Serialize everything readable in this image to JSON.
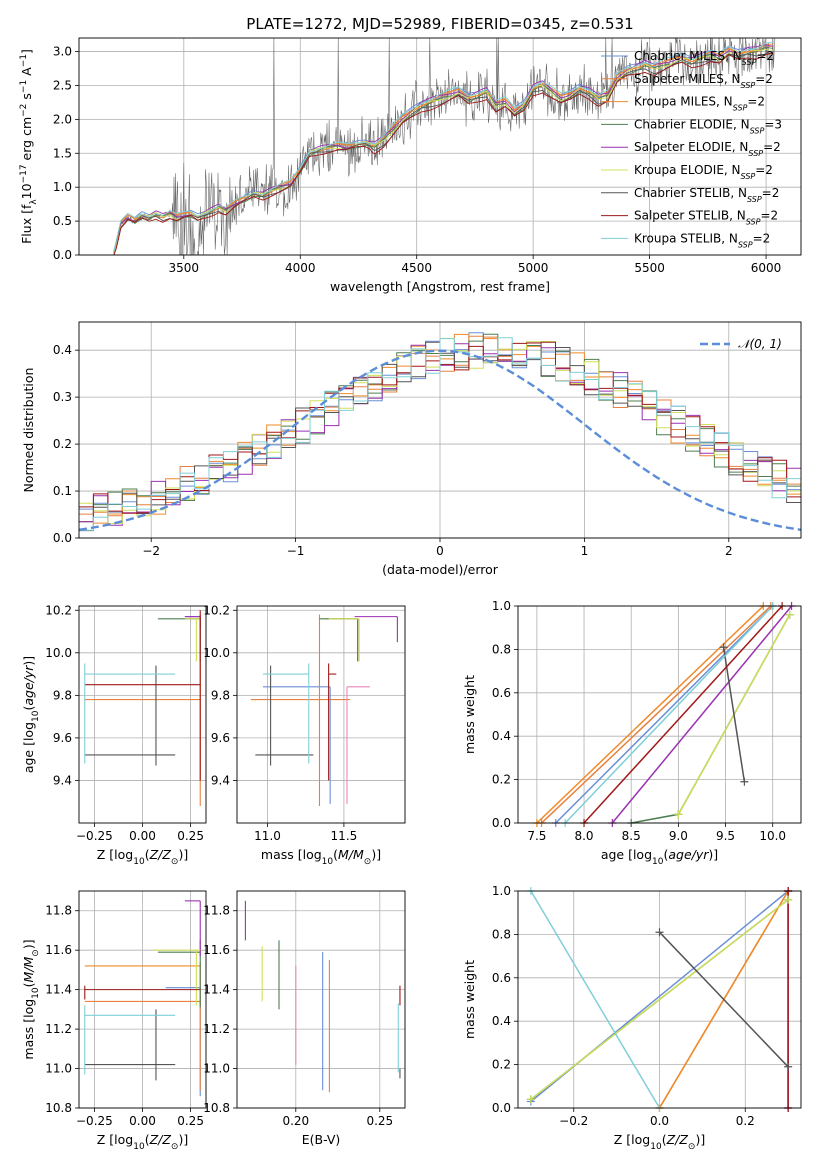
{
  "figure": {
    "title": "PLATE=1272, MJD=52989, FIBERID=0345, z=0.531"
  },
  "colors": {
    "data": "#606060",
    "Chabrier MILES": "#6a8fd6",
    "Salpeter MILES": "#e8803e",
    "Kroupa MILES": "#f08a2a",
    "Chabrier ELODIE": "#4e7f52",
    "Salpeter ELODIE": "#9b30b0",
    "Kroupa ELODIE": "#cfe05a",
    "Chabrier STELIB": "#555555",
    "Salpeter STELIB": "#a01818",
    "Kroupa STELIB": "#80cfd8",
    "normal": "#5b8dd9"
  },
  "chart_data": [
    {
      "type": "line",
      "title": "PLATE=1272, MJD=52989, FIBERID=0345, z=0.531",
      "xlabel": "wavelength [Angstrom, rest frame]",
      "ylabel": "Flux [f_λ 10^-17 erg cm^-2 s^-1 A^-1]",
      "xlim": [
        3050,
        6150
      ],
      "ylim": [
        0,
        3.2
      ],
      "xticks": [
        3500,
        4000,
        4500,
        5000,
        5500,
        6000
      ],
      "yticks": [
        0.0,
        0.5,
        1.0,
        1.5,
        2.0,
        2.5,
        3.0
      ],
      "grid": true,
      "legend": "upper right",
      "model_knots_x": [
        3200,
        3230,
        3260,
        3290,
        3320,
        3350,
        3380,
        3410,
        3440,
        3470,
        3500,
        3530,
        3560,
        3590,
        3620,
        3650,
        3680,
        3720,
        3760,
        3800,
        3840,
        3880,
        3920,
        3960,
        4000,
        4040,
        4080,
        4120,
        4160,
        4200,
        4240,
        4280,
        4320,
        4360,
        4400,
        4440,
        4480,
        4520,
        4560,
        4600,
        4640,
        4680,
        4720,
        4760,
        4800,
        4840,
        4880,
        4920,
        4960,
        5000,
        5040,
        5080,
        5120,
        5160,
        5200,
        5240,
        5280,
        5320,
        5360,
        5400,
        5440,
        5480,
        5520,
        5560,
        5600,
        5640,
        5680,
        5720,
        5760,
        5800,
        5840,
        5880,
        5920,
        5960,
        6000
      ],
      "model_knots_y": [
        0.02,
        0.45,
        0.55,
        0.5,
        0.58,
        0.55,
        0.6,
        0.56,
        0.6,
        0.55,
        0.58,
        0.6,
        0.55,
        0.6,
        0.65,
        0.7,
        0.65,
        0.75,
        0.82,
        0.9,
        0.88,
        0.95,
        1.0,
        1.05,
        1.25,
        1.5,
        1.55,
        1.58,
        1.6,
        1.58,
        1.62,
        1.65,
        1.6,
        1.7,
        1.85,
        2.0,
        2.1,
        2.2,
        2.25,
        2.3,
        2.35,
        2.4,
        2.3,
        2.35,
        2.4,
        2.2,
        2.25,
        2.1,
        2.2,
        2.45,
        2.5,
        2.4,
        2.3,
        2.35,
        2.45,
        2.4,
        2.3,
        2.35,
        2.6,
        2.7,
        2.75,
        2.8,
        2.75,
        2.8,
        2.85,
        2.9,
        2.85,
        2.9,
        2.95,
        2.9,
        3.0,
        2.95,
        3.0,
        3.0,
        3.05
      ],
      "series": [
        {
          "name": "Chabrier MILES",
          "nssp": "2",
          "offset": 0.05
        },
        {
          "name": "Salpeter MILES",
          "nssp": "2",
          "offset": 0.02
        },
        {
          "name": "Kroupa MILES",
          "nssp": "2",
          "offset": 0.03
        },
        {
          "name": "Chabrier ELODIE",
          "nssp": "3",
          "offset": -0.02
        },
        {
          "name": "Salpeter ELODIE",
          "nssp": "2",
          "offset": 0.04
        },
        {
          "name": "Kroupa ELODIE",
          "nssp": "2",
          "offset": 0.0
        },
        {
          "name": "Chabrier STELIB",
          "nssp": "2",
          "offset": -0.05
        },
        {
          "name": "Salpeter STELIB",
          "nssp": "2",
          "offset": -0.08
        },
        {
          "name": "Kroupa STELIB",
          "nssp": "2",
          "offset": 0.06
        }
      ]
    },
    {
      "type": "bar",
      "xlabel": "(data-model)/error",
      "ylabel": "Normed distribution",
      "xlim": [
        -2.5,
        2.5
      ],
      "ylim": [
        0,
        0.46
      ],
      "xticks": [
        -2,
        -1,
        0,
        1,
        2
      ],
      "yticks": [
        0.0,
        0.1,
        0.2,
        0.3,
        0.4
      ],
      "grid": true,
      "legend": "upper right",
      "reference_curve": {
        "name": "𝒩(0, 1)",
        "mean": 0,
        "sigma": 1
      },
      "bin_edges_range": [
        -2.5,
        2.5
      ],
      "bin_count": 50,
      "shape": {
        "center": 0.35,
        "sigma": 1.25,
        "peak": 0.38
      }
    },
    {
      "type": "scatter",
      "xlabel": "Z [log10(Z/Z⊙)]",
      "ylabel": "age [log10(age/yr)]",
      "xlim": [
        -0.33,
        0.33
      ],
      "ylim": [
        9.2,
        10.22
      ],
      "xticks": [
        -0.25,
        0.0,
        0.25
      ],
      "yticks": [
        9.4,
        9.6,
        9.8,
        10.0,
        10.2
      ],
      "grid": true,
      "points": [
        {
          "series": "Chabrier MILES",
          "x": 0.3,
          "y": 10.17,
          "xerr": [
            0.08,
            0.0
          ],
          "yerr": [
            0.05,
            0.0
          ]
        },
        {
          "series": "Salpeter MILES",
          "x": 0.3,
          "y": 9.78,
          "xerr": [
            0.6,
            0.0
          ],
          "yerr": [
            0.5,
            0.4
          ]
        },
        {
          "series": "Kroupa MILES",
          "x": 0.3,
          "y": 10.16,
          "xerr": [
            0.08,
            0.0
          ],
          "yerr": [
            0.05,
            0.0
          ]
        },
        {
          "series": "Chabrier ELODIE",
          "x": 0.3,
          "y": 10.16,
          "xerr": [
            0.22,
            0.0
          ],
          "yerr": [
            0.2,
            0.0
          ]
        },
        {
          "series": "Salpeter ELODIE",
          "x": 0.3,
          "y": 10.17,
          "xerr": [
            0.08,
            0.0
          ],
          "yerr": [
            0.05,
            0.0
          ]
        },
        {
          "series": "Kroupa ELODIE",
          "x": 0.28,
          "y": 10.16,
          "xerr": [
            0.06,
            0.02
          ],
          "yerr": [
            0.2,
            0.0
          ]
        },
        {
          "series": "Chabrier STELIB",
          "x": 0.07,
          "y": 9.52,
          "xerr": [
            0.37,
            0.1
          ],
          "yerr": [
            0.05,
            0.42
          ]
        },
        {
          "series": "Salpeter STELIB",
          "x": 0.3,
          "y": 9.85,
          "xerr": [
            0.6,
            0.0
          ],
          "yerr": [
            0.45,
            0.35
          ]
        },
        {
          "series": "Kroupa STELIB",
          "x": -0.3,
          "y": 9.9,
          "xerr": [
            0.0,
            0.47
          ],
          "yerr": [
            0.42,
            0.05
          ]
        }
      ]
    },
    {
      "type": "scatter",
      "xlabel": "mass [log10(M/M⊙)]",
      "ylabel": "",
      "xlim": [
        10.8,
        11.9
      ],
      "ylim": [
        9.2,
        10.22
      ],
      "xticks": [
        11.0,
        11.5
      ],
      "yticks": [
        9.4,
        9.6,
        9.8,
        10.0,
        10.2
      ],
      "grid": true,
      "points": [
        {
          "series": "Chabrier MILES",
          "x": 11.41,
          "y": 9.84,
          "xerr": [
            0.44,
            0.0
          ],
          "yerr": [
            0.55,
            0.0
          ]
        },
        {
          "series": "Salpeter MILES",
          "x": 11.34,
          "y": 9.78,
          "xerr": [
            0.45,
            0.2
          ],
          "yerr": [
            0.5,
            0.4
          ]
        },
        {
          "series": "Kroupa MILES",
          "x": 11.59,
          "y": 10.16,
          "xerr": [
            0.2,
            0.0
          ],
          "yerr": [
            0.2,
            0.0
          ]
        },
        {
          "series": "Chabrier ELODIE",
          "x": 11.59,
          "y": 10.16,
          "xerr": [
            0.25,
            0.0
          ],
          "yerr": [
            0.2,
            0.0
          ]
        },
        {
          "series": "Salpeter ELODIE",
          "x": 11.85,
          "y": 10.17,
          "xerr": [
            0.28,
            0.0
          ],
          "yerr": [
            0.12,
            0.0
          ]
        },
        {
          "series": "Kroupa ELODIE",
          "x": 11.6,
          "y": 10.16,
          "xerr": [
            0.2,
            0.0
          ],
          "yerr": [
            0.2,
            0.0
          ]
        },
        {
          "series": "Chabrier STELIB",
          "x": 11.02,
          "y": 9.52,
          "xerr": [
            0.1,
            0.28
          ],
          "yerr": [
            0.05,
            0.42
          ]
        },
        {
          "series": "Salpeter STELIB",
          "x": 11.4,
          "y": 9.9,
          "xerr": [
            0.0,
            0.05
          ],
          "yerr": [
            0.5,
            0.05
          ]
        },
        {
          "series": "Kroupa STELIB",
          "x": 11.27,
          "y": 9.9,
          "xerr": [
            0.3,
            0.0
          ],
          "yerr": [
            0.42,
            0.05
          ]
        },
        {
          "series": "Salpeter MILES pink",
          "x": 11.52,
          "y": 9.84,
          "xerr": [
            0.0,
            0.15
          ],
          "yerr": [
            0.55,
            0.0
          ]
        }
      ]
    },
    {
      "type": "line",
      "xlabel": "age [log10(age/yr)]",
      "ylabel": "mass weight",
      "xlim": [
        7.3,
        10.3
      ],
      "ylim": [
        0,
        1
      ],
      "xticks": [
        7.5,
        8.0,
        8.5,
        9.0,
        9.5,
        10.0
      ],
      "yticks": [
        0.0,
        0.2,
        0.4,
        0.6,
        0.8,
        1.0
      ],
      "grid": true,
      "series": [
        {
          "name": "Chabrier MILES",
          "x": [
            7.7,
            10.0
          ],
          "y": [
            0.0,
            1.0
          ]
        },
        {
          "name": "Salpeter MILES",
          "x": [
            7.55,
            9.98
          ],
          "y": [
            0.0,
            1.0
          ]
        },
        {
          "name": "Kroupa MILES",
          "x": [
            7.5,
            9.9
          ],
          "y": [
            0.0,
            1.0
          ]
        },
        {
          "name": "Chabrier ELODIE",
          "x": [
            8.5,
            9.0,
            10.18
          ],
          "y": [
            0.0,
            0.04,
            0.96
          ]
        },
        {
          "name": "Salpeter ELODIE",
          "x": [
            8.3,
            10.2
          ],
          "y": [
            0.0,
            1.0
          ]
        },
        {
          "name": "Kroupa ELODIE",
          "x": [
            9.0,
            10.18
          ],
          "y": [
            0.04,
            0.96
          ]
        },
        {
          "name": "Chabrier STELIB",
          "x": [
            9.48,
            9.7
          ],
          "y": [
            0.81,
            0.19
          ]
        },
        {
          "name": "Salpeter STELIB",
          "x": [
            8.0,
            10.1
          ],
          "y": [
            0.0,
            1.0
          ]
        },
        {
          "name": "Kroupa STELIB",
          "x": [
            7.8,
            10.0
          ],
          "y": [
            0.0,
            1.0
          ]
        }
      ]
    },
    {
      "type": "scatter",
      "xlabel": "Z [log10(Z/Z⊙)]",
      "ylabel": "mass [log10(M/M⊙)]",
      "xlim": [
        -0.33,
        0.33
      ],
      "ylim": [
        10.8,
        11.9
      ],
      "xticks": [
        -0.25,
        0.0,
        0.25
      ],
      "yticks": [
        10.8,
        11.0,
        11.2,
        11.4,
        11.6,
        11.8
      ],
      "grid": true,
      "points": [
        {
          "series": "Chabrier MILES",
          "x": 0.3,
          "y": 11.41,
          "xerr": [
            0.18,
            0.0
          ],
          "yerr": [
            0.55,
            0.0
          ]
        },
        {
          "series": "Salpeter MILES",
          "x": 0.3,
          "y": 11.34,
          "xerr": [
            0.6,
            0.0
          ],
          "yerr": [
            0.45,
            0.2
          ]
        },
        {
          "series": "Kroupa MILES",
          "x": 0.3,
          "y": 11.52,
          "xerr": [
            0.6,
            0.0
          ],
          "yerr": [
            0.0,
            0.0
          ]
        },
        {
          "series": "Chabrier ELODIE",
          "x": 0.3,
          "y": 11.59,
          "xerr": [
            0.22,
            0.0
          ],
          "yerr": [
            0.28,
            0.06
          ]
        },
        {
          "series": "Salpeter ELODIE",
          "x": 0.3,
          "y": 11.85,
          "xerr": [
            0.08,
            0.0
          ],
          "yerr": [
            0.28,
            0.0
          ]
        },
        {
          "series": "Kroupa ELODIE",
          "x": 0.28,
          "y": 11.6,
          "xerr": [
            0.22,
            0.02
          ],
          "yerr": [
            0.28,
            0.0
          ]
        },
        {
          "series": "Chabrier STELIB",
          "x": 0.07,
          "y": 11.02,
          "xerr": [
            0.37,
            0.1
          ],
          "yerr": [
            0.08,
            0.28
          ]
        },
        {
          "series": "Salpeter STELIB",
          "x": -0.3,
          "y": 11.4,
          "xerr": [
            0.0,
            0.6
          ],
          "yerr": [
            0.05,
            0.02
          ]
        },
        {
          "series": "Kroupa STELIB",
          "x": -0.3,
          "y": 11.27,
          "xerr": [
            0.0,
            0.47
          ],
          "yerr": [
            0.3,
            0.05
          ]
        }
      ]
    },
    {
      "type": "scatter",
      "xlabel": "E(B-V)",
      "ylabel": "",
      "xlim": [
        0.165,
        0.265
      ],
      "ylim": [
        10.8,
        11.9
      ],
      "xticks": [
        0.2,
        0.25
      ],
      "yticks": [
        10.8,
        11.0,
        11.2,
        11.4,
        11.6,
        11.8
      ],
      "grid": true,
      "points": [
        {
          "series": "Salpeter ELODIE",
          "x": 0.17,
          "y": 11.85,
          "yerr": [
            0.2,
            0.0
          ]
        },
        {
          "series": "Kroupa ELODIE",
          "x": 0.18,
          "y": 11.62,
          "yerr": [
            0.28,
            0.0
          ]
        },
        {
          "series": "Chabrier ELODIE",
          "x": 0.19,
          "y": 11.65,
          "yerr": [
            0.35,
            0.0
          ]
        },
        {
          "series": "Salpeter MILES pink",
          "x": 0.2,
          "y": 11.52,
          "yerr": [
            0.5,
            0.0
          ]
        },
        {
          "series": "Chabrier MILES",
          "x": 0.216,
          "y": 11.59,
          "yerr": [
            0.7,
            0.0
          ]
        },
        {
          "series": "Salpeter MILES",
          "x": 0.22,
          "y": 11.55,
          "yerr": [
            0.67,
            0.0
          ]
        },
        {
          "series": "Salpeter STELIB",
          "x": 0.262,
          "y": 11.42,
          "yerr": [
            0.1,
            0.0
          ]
        },
        {
          "series": "Kroupa STELIB",
          "x": 0.261,
          "y": 11.33,
          "yerr": [
            0.35,
            0.0
          ]
        },
        {
          "series": "Chabrier STELIB",
          "x": 0.262,
          "y": 11.0,
          "yerr": [
            0.05,
            0.0
          ]
        }
      ]
    },
    {
      "type": "line",
      "xlabel": "Z [log10(Z/Z⊙)]",
      "ylabel": "mass weight",
      "xlim": [
        -0.33,
        0.33
      ],
      "ylim": [
        0,
        1
      ],
      "xticks": [
        -0.2,
        0.0,
        0.2
      ],
      "yticks": [
        0.0,
        0.2,
        0.4,
        0.6,
        0.8,
        1.0
      ],
      "grid": true,
      "series": [
        {
          "name": "Chabrier MILES",
          "x": [
            -0.3,
            0.3
          ],
          "y": [
            0.03,
            1.0
          ]
        },
        {
          "name": "Salpeter MILES",
          "x": [
            0.0,
            0.3
          ],
          "y": [
            0.0,
            1.0
          ]
        },
        {
          "name": "Kroupa MILES",
          "x": [
            0.0,
            0.3
          ],
          "y": [
            0.0,
            1.0
          ]
        },
        {
          "name": "Chabrier ELODIE",
          "x": [
            -0.3,
            0.3
          ],
          "y": [
            0.04,
            0.96
          ]
        },
        {
          "name": "Salpeter ELODIE",
          "x": [
            0.3,
            0.3
          ],
          "y": [
            0.0,
            1.0
          ]
        },
        {
          "name": "Kroupa ELODIE",
          "x": [
            -0.3,
            0.3
          ],
          "y": [
            0.04,
            0.96
          ]
        },
        {
          "name": "Chabrier STELIB",
          "x": [
            0.0,
            0.3
          ],
          "y": [
            0.81,
            0.19
          ]
        },
        {
          "name": "Salpeter STELIB",
          "x": [
            0.3,
            0.3
          ],
          "y": [
            0.0,
            1.0
          ]
        },
        {
          "name": "Kroupa STELIB",
          "x": [
            -0.3,
            0.0
          ],
          "y": [
            1.0,
            0.0
          ]
        }
      ]
    }
  ]
}
